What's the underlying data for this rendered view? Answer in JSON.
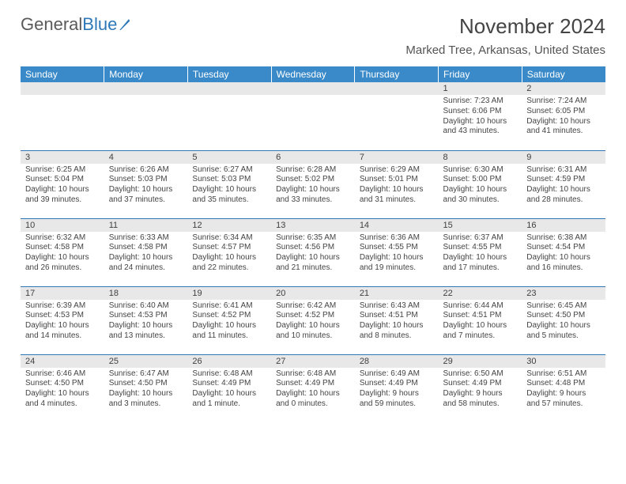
{
  "logo": {
    "text1": "General",
    "text2": "Blue"
  },
  "title": "November 2024",
  "location": "Marked Tree, Arkansas, United States",
  "colors": {
    "header_bg": "#3a8ac9",
    "header_text": "#ffffff",
    "row_border": "#2f78b8",
    "daynum_bg": "#e8e8e8",
    "daynum_text": "#3f3f3f",
    "body_text": "#444444",
    "title_text": "#444444",
    "logo_gray": "#5a5a5a",
    "logo_blue": "#2f78b8",
    "background": "#ffffff"
  },
  "typography": {
    "month_title_fontsize": 26,
    "location_fontsize": 15,
    "dayheader_fontsize": 12,
    "daynum_fontsize": 11,
    "cell_fontsize": 10
  },
  "day_headers": [
    "Sunday",
    "Monday",
    "Tuesday",
    "Wednesday",
    "Thursday",
    "Friday",
    "Saturday"
  ],
  "weeks": [
    [
      {
        "n": "",
        "sr": "",
        "ss": "",
        "dl": ""
      },
      {
        "n": "",
        "sr": "",
        "ss": "",
        "dl": ""
      },
      {
        "n": "",
        "sr": "",
        "ss": "",
        "dl": ""
      },
      {
        "n": "",
        "sr": "",
        "ss": "",
        "dl": ""
      },
      {
        "n": "",
        "sr": "",
        "ss": "",
        "dl": ""
      },
      {
        "n": "1",
        "sr": "Sunrise: 7:23 AM",
        "ss": "Sunset: 6:06 PM",
        "dl": "Daylight: 10 hours and 43 minutes."
      },
      {
        "n": "2",
        "sr": "Sunrise: 7:24 AM",
        "ss": "Sunset: 6:05 PM",
        "dl": "Daylight: 10 hours and 41 minutes."
      }
    ],
    [
      {
        "n": "3",
        "sr": "Sunrise: 6:25 AM",
        "ss": "Sunset: 5:04 PM",
        "dl": "Daylight: 10 hours and 39 minutes."
      },
      {
        "n": "4",
        "sr": "Sunrise: 6:26 AM",
        "ss": "Sunset: 5:03 PM",
        "dl": "Daylight: 10 hours and 37 minutes."
      },
      {
        "n": "5",
        "sr": "Sunrise: 6:27 AM",
        "ss": "Sunset: 5:03 PM",
        "dl": "Daylight: 10 hours and 35 minutes."
      },
      {
        "n": "6",
        "sr": "Sunrise: 6:28 AM",
        "ss": "Sunset: 5:02 PM",
        "dl": "Daylight: 10 hours and 33 minutes."
      },
      {
        "n": "7",
        "sr": "Sunrise: 6:29 AM",
        "ss": "Sunset: 5:01 PM",
        "dl": "Daylight: 10 hours and 31 minutes."
      },
      {
        "n": "8",
        "sr": "Sunrise: 6:30 AM",
        "ss": "Sunset: 5:00 PM",
        "dl": "Daylight: 10 hours and 30 minutes."
      },
      {
        "n": "9",
        "sr": "Sunrise: 6:31 AM",
        "ss": "Sunset: 4:59 PM",
        "dl": "Daylight: 10 hours and 28 minutes."
      }
    ],
    [
      {
        "n": "10",
        "sr": "Sunrise: 6:32 AM",
        "ss": "Sunset: 4:58 PM",
        "dl": "Daylight: 10 hours and 26 minutes."
      },
      {
        "n": "11",
        "sr": "Sunrise: 6:33 AM",
        "ss": "Sunset: 4:58 PM",
        "dl": "Daylight: 10 hours and 24 minutes."
      },
      {
        "n": "12",
        "sr": "Sunrise: 6:34 AM",
        "ss": "Sunset: 4:57 PM",
        "dl": "Daylight: 10 hours and 22 minutes."
      },
      {
        "n": "13",
        "sr": "Sunrise: 6:35 AM",
        "ss": "Sunset: 4:56 PM",
        "dl": "Daylight: 10 hours and 21 minutes."
      },
      {
        "n": "14",
        "sr": "Sunrise: 6:36 AM",
        "ss": "Sunset: 4:55 PM",
        "dl": "Daylight: 10 hours and 19 minutes."
      },
      {
        "n": "15",
        "sr": "Sunrise: 6:37 AM",
        "ss": "Sunset: 4:55 PM",
        "dl": "Daylight: 10 hours and 17 minutes."
      },
      {
        "n": "16",
        "sr": "Sunrise: 6:38 AM",
        "ss": "Sunset: 4:54 PM",
        "dl": "Daylight: 10 hours and 16 minutes."
      }
    ],
    [
      {
        "n": "17",
        "sr": "Sunrise: 6:39 AM",
        "ss": "Sunset: 4:53 PM",
        "dl": "Daylight: 10 hours and 14 minutes."
      },
      {
        "n": "18",
        "sr": "Sunrise: 6:40 AM",
        "ss": "Sunset: 4:53 PM",
        "dl": "Daylight: 10 hours and 13 minutes."
      },
      {
        "n": "19",
        "sr": "Sunrise: 6:41 AM",
        "ss": "Sunset: 4:52 PM",
        "dl": "Daylight: 10 hours and 11 minutes."
      },
      {
        "n": "20",
        "sr": "Sunrise: 6:42 AM",
        "ss": "Sunset: 4:52 PM",
        "dl": "Daylight: 10 hours and 10 minutes."
      },
      {
        "n": "21",
        "sr": "Sunrise: 6:43 AM",
        "ss": "Sunset: 4:51 PM",
        "dl": "Daylight: 10 hours and 8 minutes."
      },
      {
        "n": "22",
        "sr": "Sunrise: 6:44 AM",
        "ss": "Sunset: 4:51 PM",
        "dl": "Daylight: 10 hours and 7 minutes."
      },
      {
        "n": "23",
        "sr": "Sunrise: 6:45 AM",
        "ss": "Sunset: 4:50 PM",
        "dl": "Daylight: 10 hours and 5 minutes."
      }
    ],
    [
      {
        "n": "24",
        "sr": "Sunrise: 6:46 AM",
        "ss": "Sunset: 4:50 PM",
        "dl": "Daylight: 10 hours and 4 minutes."
      },
      {
        "n": "25",
        "sr": "Sunrise: 6:47 AM",
        "ss": "Sunset: 4:50 PM",
        "dl": "Daylight: 10 hours and 3 minutes."
      },
      {
        "n": "26",
        "sr": "Sunrise: 6:48 AM",
        "ss": "Sunset: 4:49 PM",
        "dl": "Daylight: 10 hours and 1 minute."
      },
      {
        "n": "27",
        "sr": "Sunrise: 6:48 AM",
        "ss": "Sunset: 4:49 PM",
        "dl": "Daylight: 10 hours and 0 minutes."
      },
      {
        "n": "28",
        "sr": "Sunrise: 6:49 AM",
        "ss": "Sunset: 4:49 PM",
        "dl": "Daylight: 9 hours and 59 minutes."
      },
      {
        "n": "29",
        "sr": "Sunrise: 6:50 AM",
        "ss": "Sunset: 4:49 PM",
        "dl": "Daylight: 9 hours and 58 minutes."
      },
      {
        "n": "30",
        "sr": "Sunrise: 6:51 AM",
        "ss": "Sunset: 4:48 PM",
        "dl": "Daylight: 9 hours and 57 minutes."
      }
    ]
  ]
}
